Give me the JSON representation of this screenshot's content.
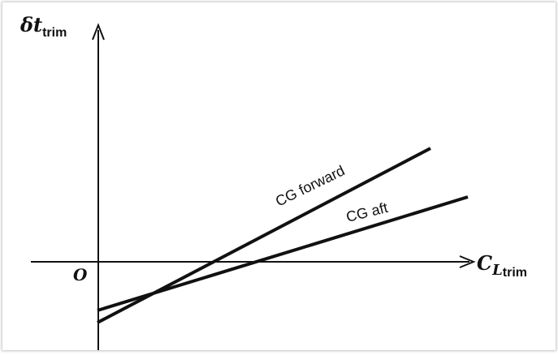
{
  "y_axis": {
    "symbol": "δt",
    "subscript": "trim"
  },
  "x_axis": {
    "symbol": "C",
    "sub_symbol": "L",
    "subscript": "trim"
  },
  "origin_label": "O",
  "lines": [
    {
      "label": "CG forward"
    },
    {
      "label": "CG aft"
    }
  ]
}
